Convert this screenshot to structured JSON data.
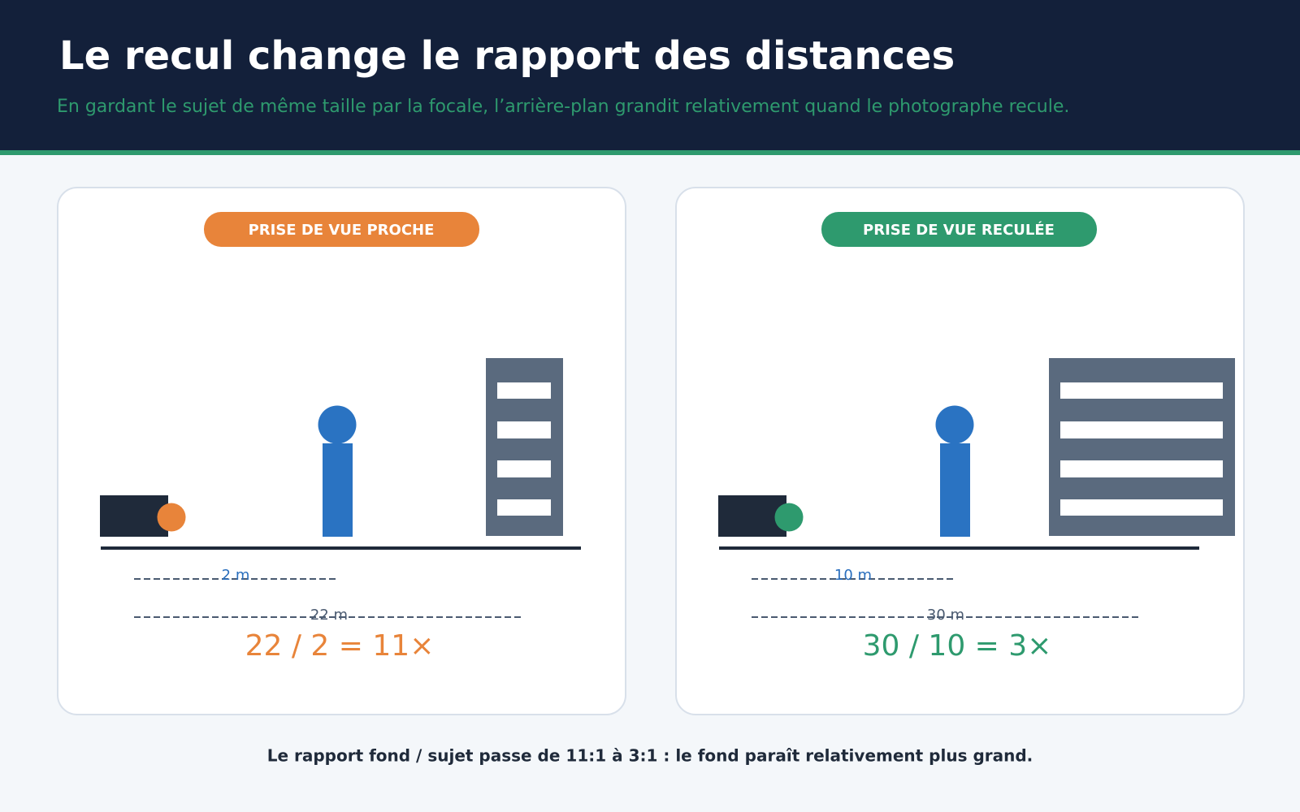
{
  "header": {
    "title": "Le recul change le rapport des distances",
    "subtitle": "En gardant le sujet de même taille par la focale, l’arrière-plan grandit relativement quand le photographe recule."
  },
  "panels": [
    {
      "badge": "PRISE DE VUE PROCHE",
      "subject_distance": "2 m",
      "background_distance": "22 m",
      "formula": "22 / 2 = 11×"
    },
    {
      "badge": "PRISE DE VUE RECULÉE",
      "subject_distance": "10 m",
      "background_distance": "30 m",
      "formula": "30 / 10 = 3×"
    }
  ],
  "footer": "Le rapport fond / sujet passe de 11:1 à 3:1 : le fond paraît relativement plus grand."
}
